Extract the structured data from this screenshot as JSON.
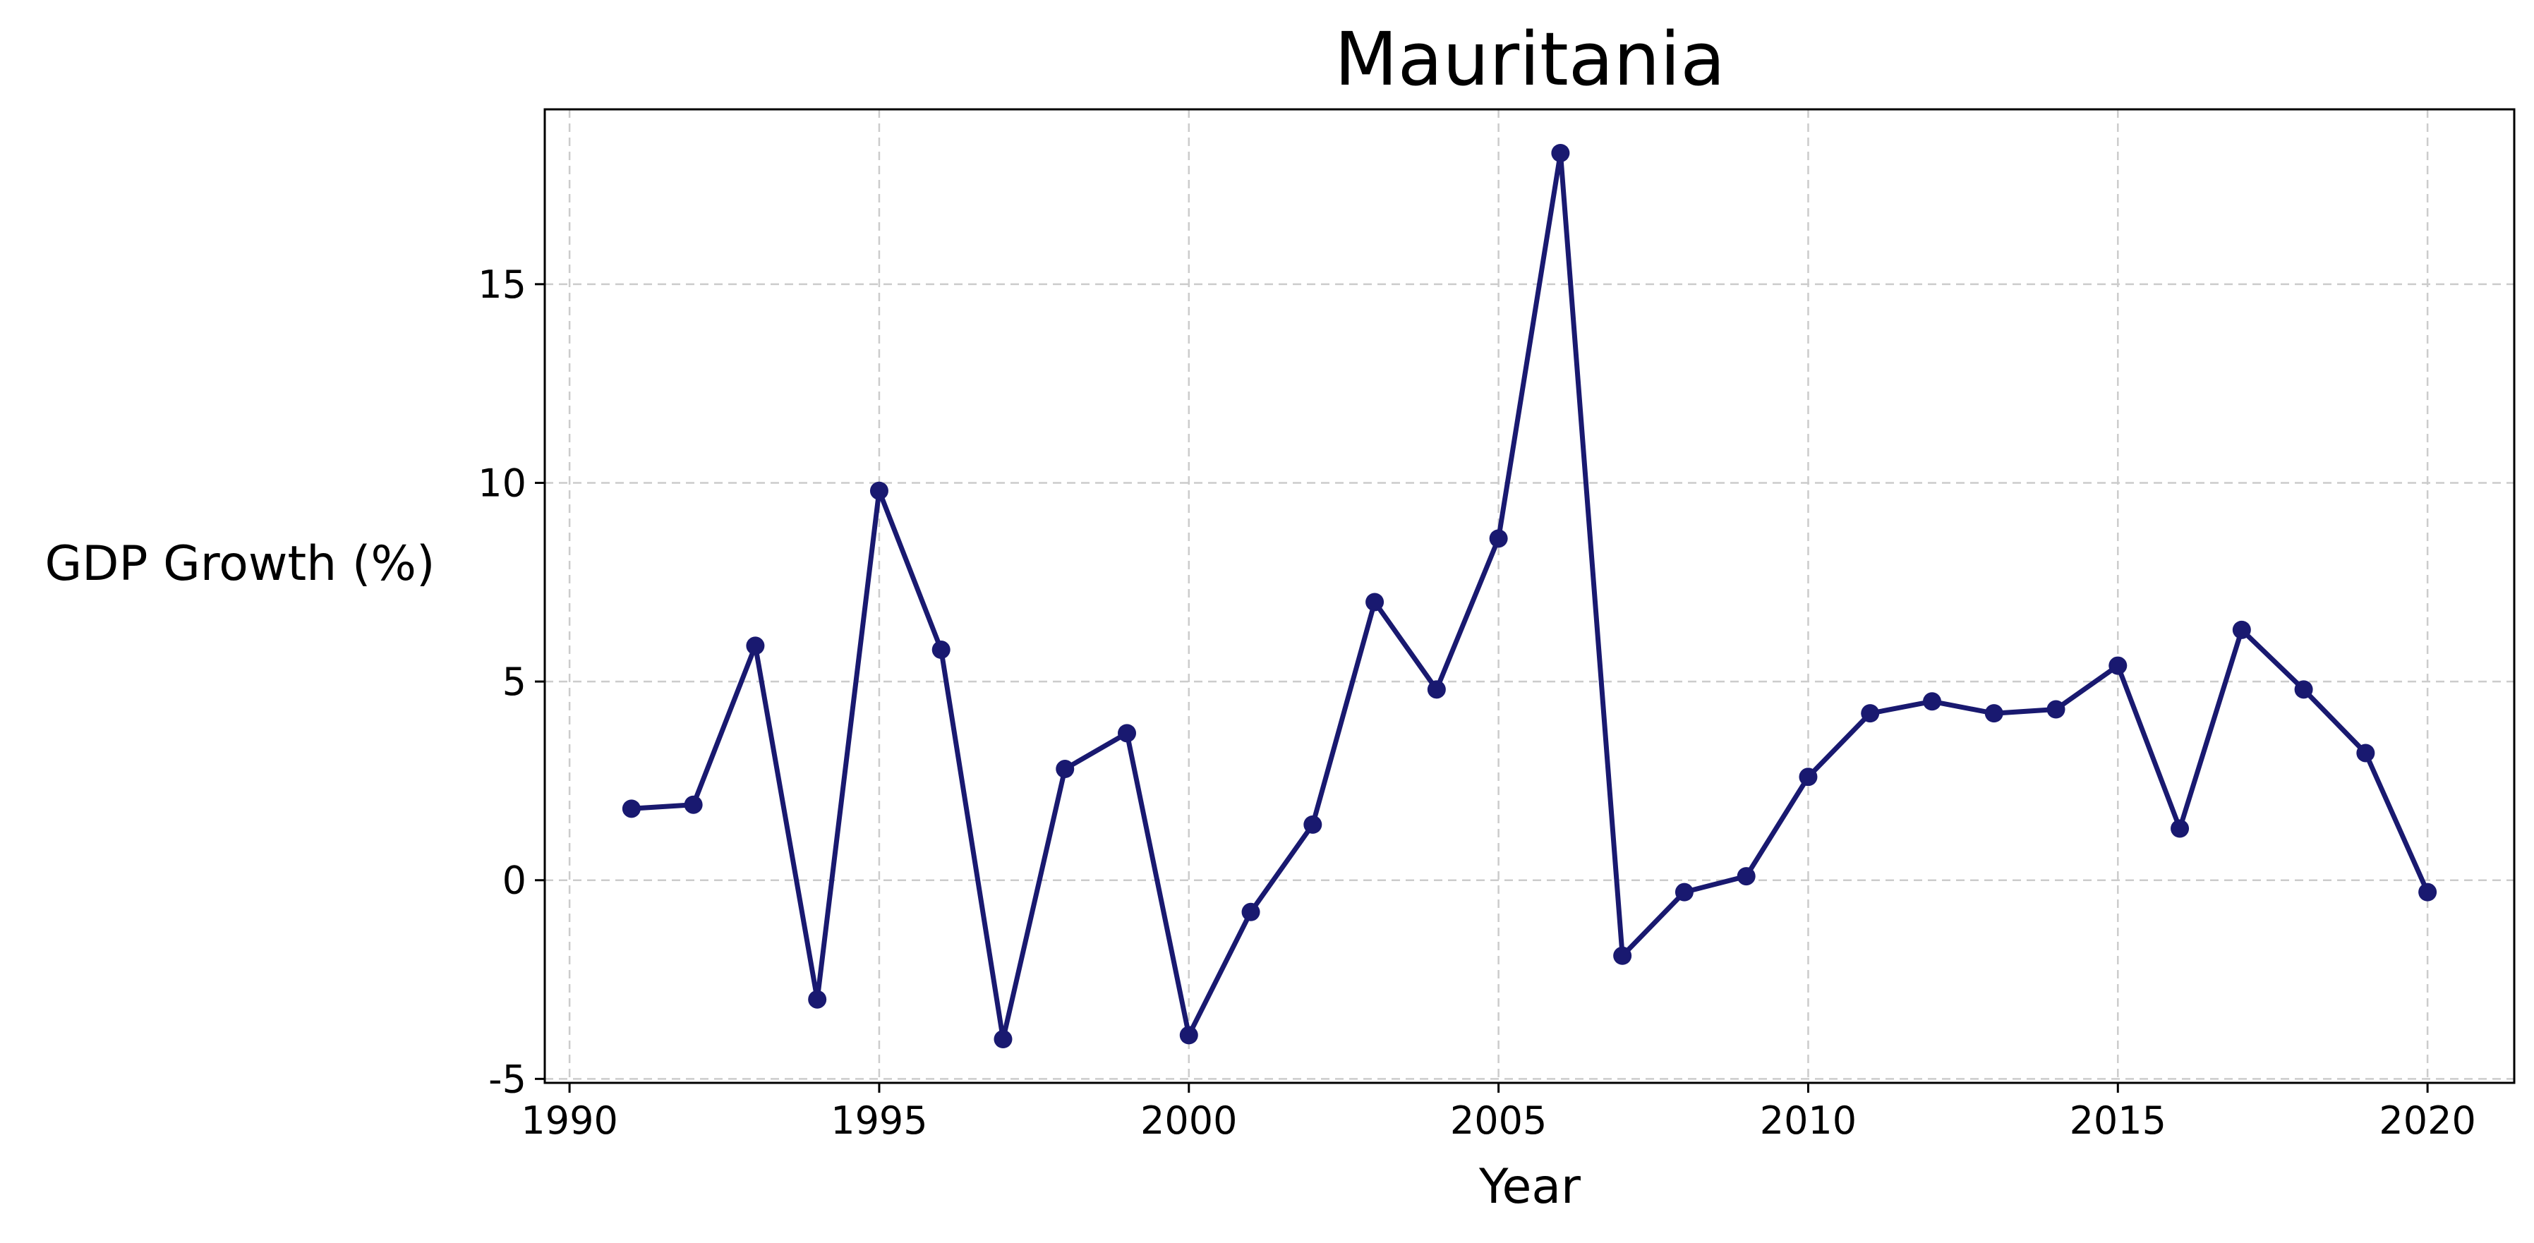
{
  "chart_data": {
    "type": "line",
    "title": "Mauritania",
    "xlabel": "Year",
    "ylabel": "GDP Growth (%)",
    "xlim": [
      1989.6,
      2021.4
    ],
    "ylim": [
      -5.1,
      19.4
    ],
    "xticks": [
      1990,
      1995,
      2000,
      2005,
      2010,
      2015,
      2020
    ],
    "yticks": [
      -5,
      0,
      5,
      10,
      15
    ],
    "grid": true,
    "colors": {
      "line": "#191970",
      "marker": "#191970"
    },
    "series": [
      {
        "x": [
          1991,
          1992,
          1993,
          1994,
          1995,
          1996,
          1997,
          1998,
          1999,
          2000,
          2001,
          2002,
          2003,
          2004,
          2005,
          2006,
          2007,
          2008,
          2009,
          2010,
          2011,
          2012,
          2013,
          2014,
          2015,
          2016,
          2017,
          2018,
          2019,
          2020
        ],
        "values": [
          1.8,
          1.9,
          5.9,
          -3.0,
          9.8,
          5.8,
          -4.0,
          2.8,
          3.7,
          -3.9,
          -0.8,
          1.4,
          7.0,
          4.8,
          8.6,
          18.3,
          -1.9,
          -0.3,
          0.1,
          2.6,
          4.2,
          4.5,
          4.2,
          4.3,
          5.4,
          1.3,
          6.3,
          4.8,
          3.2,
          -0.3
        ]
      }
    ]
  }
}
